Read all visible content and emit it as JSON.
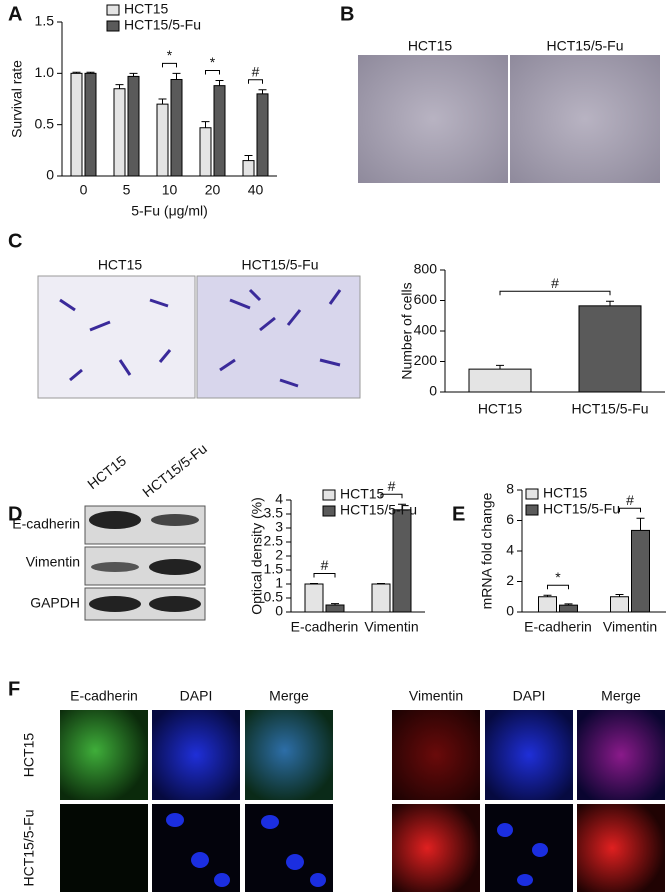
{
  "panel_letters": [
    "A",
    "B",
    "C",
    "D",
    "E",
    "F"
  ],
  "chart_data": [
    {
      "type": "bar",
      "ylabel": "Survival rate",
      "xlabel": "5-Fu (μg/ml)",
      "categories": [
        "0",
        "5",
        "10",
        "20",
        "40"
      ],
      "series": [
        {
          "name": "HCT15",
          "color": "#e4e4e4",
          "values": [
            1.0,
            0.85,
            0.7,
            0.47,
            0.15
          ],
          "errors": [
            0.01,
            0.04,
            0.05,
            0.06,
            0.05
          ]
        },
        {
          "name": "HCT15/5-Fu",
          "color": "#5a5a5a",
          "values": [
            1.0,
            0.97,
            0.94,
            0.88,
            0.8
          ],
          "errors": [
            0.01,
            0.03,
            0.06,
            0.05,
            0.04
          ]
        }
      ],
      "ylim": [
        0,
        1.5
      ],
      "yticks": [
        0,
        0.5,
        {
          "value": 1,
          "label": "1.0"
        },
        1.5
      ],
      "significance": [
        {
          "index": 2,
          "label": "*"
        },
        {
          "index": 3,
          "label": "*"
        },
        {
          "index": 4,
          "label": "#"
        }
      ]
    },
    {
      "type": "bar",
      "ylabel": "Number of cells",
      "categories": [
        "HCT15",
        "HCT15/5-Fu"
      ],
      "series": [
        {
          "colors": [
            "#e4e4e4",
            "#5a5a5a"
          ],
          "values": [
            150,
            565
          ],
          "errors": [
            25,
            30
          ]
        }
      ],
      "ylim": [
        0,
        800
      ],
      "yticks": [
        0,
        200,
        400,
        600,
        800
      ],
      "significance": [
        {
          "index": 0,
          "label": "#"
        }
      ]
    },
    {
      "type": "bar",
      "ylabel": "Optical density (%)",
      "categories": [
        "E-cadherin",
        "Vimentin"
      ],
      "series": [
        {
          "name": "HCT15",
          "color": "#e4e4e4",
          "values": [
            1.0,
            1.0
          ],
          "errors": [
            0.02,
            0.02
          ]
        },
        {
          "name": "HCT15/5-Fu",
          "color": "#5a5a5a",
          "values": [
            0.25,
            3.65
          ],
          "errors": [
            0.05,
            0.2
          ]
        }
      ],
      "ylim": [
        0,
        4
      ],
      "yticks": [
        0,
        0.5,
        1,
        1.5,
        2,
        2.5,
        3,
        3.5,
        4
      ],
      "significance": [
        {
          "index": 0,
          "label": "#"
        },
        {
          "index": 1,
          "label": "#"
        }
      ]
    },
    {
      "type": "bar",
      "ylabel": "mRNA fold change",
      "categories": [
        "E-cadherin",
        "Vimentin"
      ],
      "series": [
        {
          "name": "HCT15",
          "color": "#e4e4e4",
          "values": [
            1.0,
            1.0
          ],
          "errors": [
            0.1,
            0.15
          ]
        },
        {
          "name": "HCT15/5-Fu",
          "color": "#5a5a5a",
          "values": [
            0.45,
            5.35
          ],
          "errors": [
            0.08,
            0.8
          ]
        }
      ],
      "ylim": [
        0,
        8
      ],
      "yticks": [
        0,
        2,
        4,
        6,
        8
      ],
      "significance": [
        {
          "index": 0,
          "label": "*"
        },
        {
          "index": 1,
          "label": "#"
        }
      ]
    }
  ],
  "panel_b": {
    "labels": [
      "HCT15",
      "HCT15/5-Fu"
    ]
  },
  "panel_c": {
    "labels": [
      "HCT15",
      "HCT15/5-Fu"
    ]
  },
  "panel_d_blot": {
    "columns": [
      "HCT15",
      "HCT15/5-Fu"
    ],
    "rows": [
      "E-cadherin",
      "Vimentin",
      "GAPDH"
    ]
  },
  "panel_f": {
    "left_columns": [
      "E-cadherin",
      "DAPI",
      "Merge"
    ],
    "right_columns": [
      "Vimentin",
      "DAPI",
      "Merge"
    ],
    "rows": [
      "HCT15",
      "HCT15/5-Fu"
    ]
  }
}
